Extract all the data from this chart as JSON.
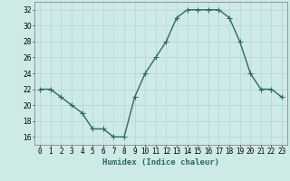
{
  "x": [
    0,
    1,
    2,
    3,
    4,
    5,
    6,
    7,
    8,
    9,
    10,
    11,
    12,
    13,
    14,
    15,
    16,
    17,
    18,
    19,
    20,
    21,
    22,
    23
  ],
  "y": [
    22,
    22,
    21,
    20,
    19,
    17,
    17,
    16,
    16,
    21,
    24,
    26,
    28,
    31,
    32,
    32,
    32,
    32,
    31,
    28,
    24,
    22,
    22,
    21
  ],
  "line_color": "#2d6b5e",
  "marker": "+",
  "marker_size": 4,
  "background_color": "#ceeae7",
  "grid_color": "#b8d8d4",
  "xlabel": "Humidex (Indice chaleur)",
  "xlim": [
    -0.5,
    23.5
  ],
  "ylim": [
    15,
    33
  ],
  "yticks": [
    16,
    18,
    20,
    22,
    24,
    26,
    28,
    30,
    32
  ],
  "xticks": [
    0,
    1,
    2,
    3,
    4,
    5,
    6,
    7,
    8,
    9,
    10,
    11,
    12,
    13,
    14,
    15,
    16,
    17,
    18,
    19,
    20,
    21,
    22,
    23
  ],
  "xtick_labels": [
    "0",
    "1",
    "2",
    "3",
    "4",
    "5",
    "6",
    "7",
    "8",
    "9",
    "10",
    "11",
    "12",
    "13",
    "14",
    "15",
    "16",
    "17",
    "18",
    "19",
    "20",
    "21",
    "22",
    "23"
  ],
  "xlabel_fontsize": 6.5,
  "tick_fontsize": 5.5,
  "line_width": 1.0
}
